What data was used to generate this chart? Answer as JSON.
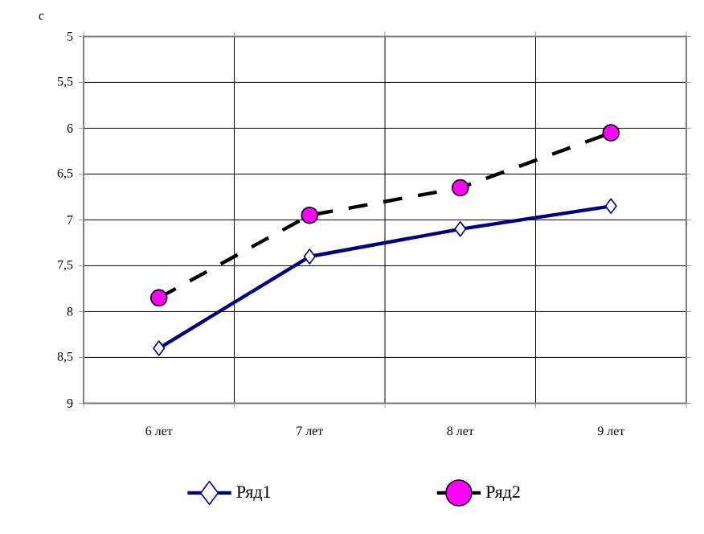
{
  "chart_data": {
    "type": "line",
    "ylabel": "с",
    "categories": [
      "6 лет",
      "7  лет",
      "8  лет",
      "9  лет"
    ],
    "series": [
      {
        "name": "Ряд1",
        "color": "#000080",
        "values": [
          8.4,
          7.4,
          7.1,
          6.85
        ],
        "marker": "diamond",
        "line_style": "solid"
      },
      {
        "name": "Ряд2",
        "color": "#ff00ff",
        "values": [
          7.85,
          6.95,
          6.65,
          6.05
        ],
        "marker": "circle",
        "line_style": "dashed"
      }
    ],
    "ylim": [
      9,
      5
    ],
    "yticks": [
      {
        "value": 5,
        "label": "5"
      },
      {
        "value": 5.5,
        "label": "5,5"
      },
      {
        "value": 6,
        "label": "6"
      },
      {
        "value": 6.5,
        "label": "6,5"
      },
      {
        "value": 7,
        "label": "7"
      },
      {
        "value": 7.5,
        "label": "7,5"
      },
      {
        "value": 8,
        "label": "8"
      },
      {
        "value": 8.5,
        "label": "8,5"
      },
      {
        "value": 9,
        "label": "9"
      }
    ],
    "grid": true,
    "legend": "bottom"
  }
}
